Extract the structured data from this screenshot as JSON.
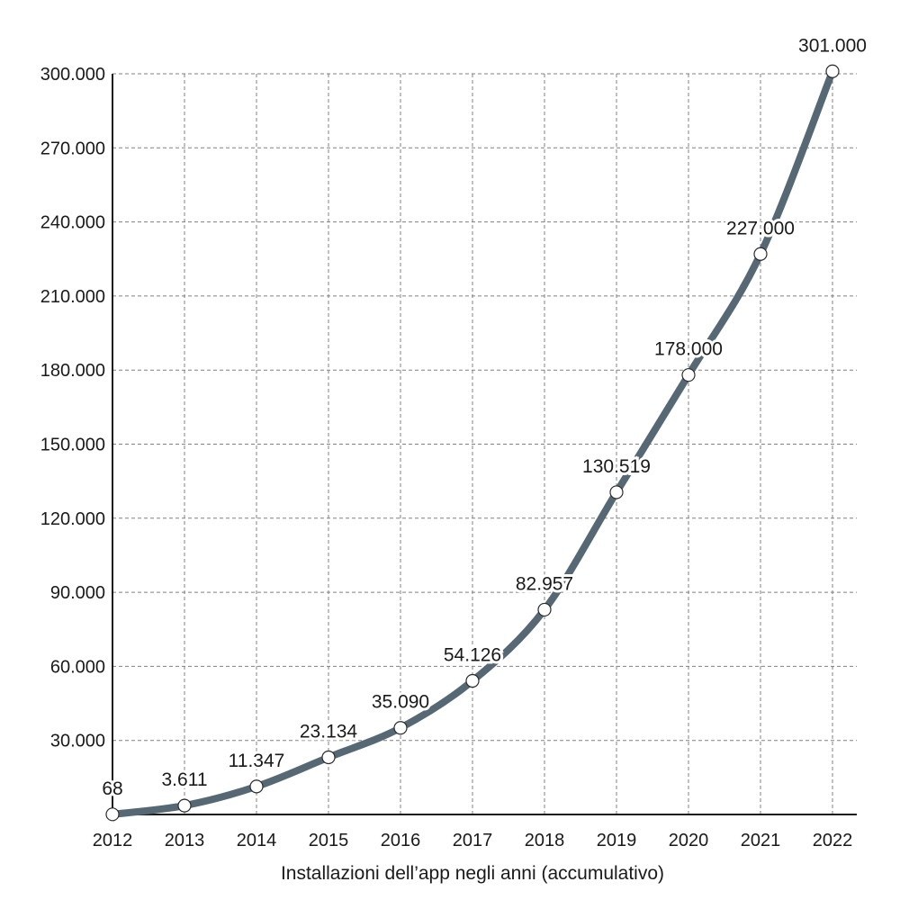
{
  "chart_data": {
    "type": "line",
    "xlabel": "Installazioni dell’app negli anni (accumulativo)",
    "ylabel": "",
    "ylim": [
      0,
      300000
    ],
    "yticks": [
      30000,
      60000,
      90000,
      120000,
      150000,
      180000,
      210000,
      240000,
      270000,
      300000
    ],
    "ytick_labels": [
      "30.000",
      "60.000",
      "90.000",
      "120.000",
      "150.000",
      "180.000",
      "210.000",
      "240.000",
      "270.000",
      "300.000"
    ],
    "categories": [
      "2012",
      "2013",
      "2014",
      "2015",
      "2016",
      "2017",
      "2018",
      "2019",
      "2020",
      "2021",
      "2022"
    ],
    "series": [
      {
        "values": [
          68,
          3611,
          11347,
          23134,
          35090,
          54126,
          82957,
          130519,
          178000,
          227000,
          301000
        ],
        "labels": [
          "68",
          "3.611",
          "11.347",
          "23.134",
          "35.090",
          "54.126",
          "82.957",
          "130.519",
          "178.000",
          "227.000",
          "301.000"
        ],
        "color": "#566873"
      }
    ],
    "grid": true,
    "legend": "none"
  }
}
